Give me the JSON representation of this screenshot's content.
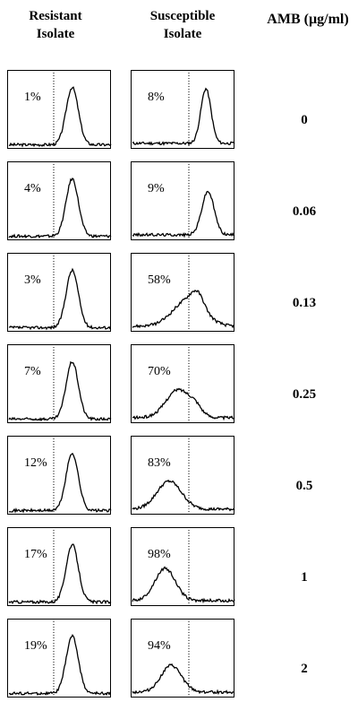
{
  "chart_data": {
    "type": "line",
    "columns": [
      "Resistant\nIsolate",
      "Susceptible\nIsolate"
    ],
    "column_headers": {
      "resistant": [
        "Resistant",
        "Isolate"
      ],
      "susceptible": [
        "Susceptible",
        "Isolate"
      ]
    },
    "condition_label": "AMB (µg/ml)",
    "rows": [
      {
        "amb": "0",
        "resistant_pct": "1%",
        "susceptible_pct": "8%"
      },
      {
        "amb": "0.06",
        "resistant_pct": "4%",
        "susceptible_pct": "9%"
      },
      {
        "amb": "0.13",
        "resistant_pct": "3%",
        "susceptible_pct": "58%"
      },
      {
        "amb": "0.25",
        "resistant_pct": "7%",
        "susceptible_pct": "70%"
      },
      {
        "amb": "0.5",
        "resistant_pct": "12%",
        "susceptible_pct": "83%"
      },
      {
        "amb": "1",
        "resistant_pct": "17%",
        "susceptible_pct": "98%"
      },
      {
        "amb": "2",
        "resistant_pct": "19%",
        "susceptible_pct": "94%"
      }
    ]
  }
}
